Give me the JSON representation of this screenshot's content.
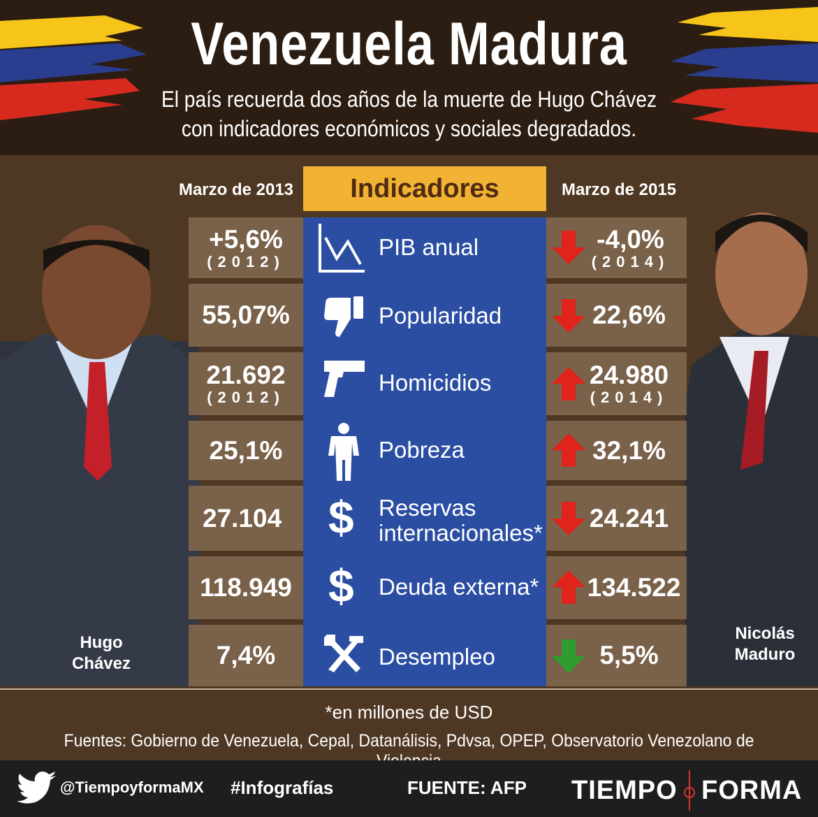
{
  "header": {
    "title": "Venezuela Madura",
    "subtitle_line1": "El país recuerda dos años de la muerte de Hugo Chávez",
    "subtitle_line2": "con indicadores económicos y sociales degradados."
  },
  "columns": {
    "left": "Marzo de 2013",
    "center": "Indicadores",
    "right": "Marzo de 2015"
  },
  "rows": [
    {
      "label": "PIB anual",
      "left": "+5,6%",
      "left_year": "(2012)",
      "right": "-4,0%",
      "right_year": "(2014)",
      "trend": "down",
      "icon": "chart-down-icon"
    },
    {
      "label": "Popularidad",
      "left": "55,07%",
      "right": "22,6%",
      "trend": "down",
      "icon": "thumbs-down-icon"
    },
    {
      "label": "Homicidios",
      "left": "21.692",
      "left_year": "(2012)",
      "right": "24.980",
      "right_year": "(2014)",
      "trend": "up",
      "icon": "gun-icon"
    },
    {
      "label": "Pobreza",
      "left": "25,1%",
      "right": "32,1%",
      "trend": "up",
      "icon": "person-icon"
    },
    {
      "label_line1": "Reservas",
      "label_line2": "internacionales*",
      "left": "27.104",
      "right": "24.241",
      "trend": "down",
      "icon": "dollar-icon"
    },
    {
      "label": "Deuda externa*",
      "left": "118.949",
      "right": "134.522",
      "trend": "up",
      "icon": "dollar-icon"
    },
    {
      "label": "Desempleo",
      "left": "7,4%",
      "right": "5,5%",
      "trend": "down-good",
      "icon": "tools-icon"
    }
  ],
  "people": {
    "left_line1": "Hugo",
    "left_line2": "Chávez",
    "right_line1": "Nicolás",
    "right_line2": "Maduro"
  },
  "notes": {
    "unit": "*en millones de USD",
    "sources": "Fuentes: Gobierno de Venezuela, Cepal, Datanálisis, Pdvsa, OPEP, Observatorio Venezolano de Violencia"
  },
  "footer": {
    "twitter": "@TiempoyformaMX",
    "hashtag": "#Infografías",
    "fuente": "FUENTE: AFP",
    "logo_left": "TIEMPO",
    "logo_right": "FORMA"
  },
  "colors": {
    "down_arrow": "#e0231b",
    "up_arrow": "#e0231b",
    "good_arrow": "#2e9c2e",
    "panel": "#2b4ea2",
    "box": "#7a6149",
    "accent": "#f2b233"
  }
}
